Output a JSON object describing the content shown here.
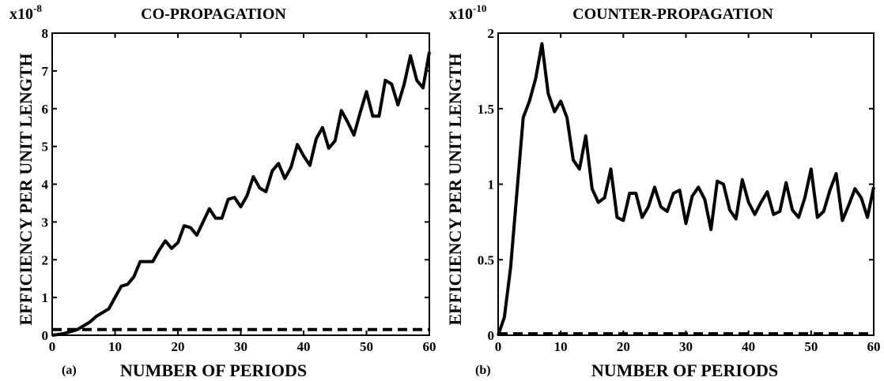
{
  "chart_data": [
    {
      "panel_label": "(a)",
      "type": "line",
      "title": "CO-PROPAGATION",
      "xlabel": "NUMBER OF PERIODS",
      "ylabel": "EFFICIENCY PER UNIT LENGTH",
      "y_multiplier": "x10",
      "y_multiplier_exp": "-8",
      "xlim": [
        0,
        60
      ],
      "ylim": [
        0,
        8
      ],
      "x_ticks": [
        0,
        10,
        20,
        30,
        40,
        50,
        60
      ],
      "y_ticks": [
        0,
        1,
        2,
        3,
        4,
        5,
        6,
        7,
        8
      ],
      "grid": false,
      "series": [
        {
          "style": "solid",
          "x": [
            0,
            1,
            2,
            3,
            4,
            5,
            6,
            7,
            8,
            9,
            10,
            11,
            12,
            13,
            14,
            15,
            16,
            17,
            18,
            19,
            20,
            21,
            22,
            23,
            24,
            25,
            26,
            27,
            28,
            29,
            30,
            31,
            32,
            33,
            34,
            35,
            36,
            37,
            38,
            39,
            40,
            41,
            42,
            43,
            44,
            45,
            46,
            47,
            48,
            49,
            50,
            51,
            52,
            53,
            54,
            55,
            56,
            57,
            58,
            59,
            60
          ],
          "y": [
            0,
            0.02,
            0.05,
            0.1,
            0.15,
            0.25,
            0.35,
            0.5,
            0.6,
            0.7,
            1.0,
            1.3,
            1.35,
            1.55,
            1.95,
            1.95,
            1.95,
            2.25,
            2.5,
            2.3,
            2.45,
            2.9,
            2.85,
            2.65,
            3.0,
            3.35,
            3.1,
            3.1,
            3.6,
            3.65,
            3.4,
            3.7,
            4.2,
            3.9,
            3.8,
            4.35,
            4.55,
            4.15,
            4.45,
            5.05,
            4.75,
            4.5,
            5.2,
            5.5,
            4.95,
            5.15,
            5.95,
            5.65,
            5.3,
            5.9,
            6.45,
            5.8,
            5.8,
            6.75,
            6.65,
            6.1,
            6.65,
            7.4,
            6.75,
            6.55,
            7.5
          ]
        },
        {
          "style": "dashed",
          "x": [
            0,
            60
          ],
          "y": [
            0.15,
            0.15
          ]
        }
      ]
    },
    {
      "panel_label": "(b)",
      "type": "line",
      "title": "COUNTER-PROPAGATION",
      "xlabel": "NUMBER OF PERIODS",
      "ylabel": "EFFICIENCY PER UNIT LENGTH",
      "y_multiplier": "x10",
      "y_multiplier_exp": "-10",
      "xlim": [
        0,
        60
      ],
      "ylim": [
        0,
        2
      ],
      "x_ticks": [
        0,
        10,
        20,
        30,
        40,
        50,
        60
      ],
      "y_ticks": [
        0,
        0.5,
        1,
        1.5,
        2
      ],
      "grid": false,
      "series": [
        {
          "style": "solid",
          "x": [
            0,
            1,
            2,
            3,
            4,
            5,
            6,
            7,
            8,
            9,
            10,
            11,
            12,
            13,
            14,
            15,
            16,
            17,
            18,
            19,
            20,
            21,
            22,
            23,
            24,
            25,
            26,
            27,
            28,
            29,
            30,
            31,
            32,
            33,
            34,
            35,
            36,
            37,
            38,
            39,
            40,
            41,
            42,
            43,
            44,
            45,
            46,
            47,
            48,
            49,
            50,
            51,
            52,
            53,
            54,
            55,
            56,
            57,
            58,
            59,
            60
          ],
          "y": [
            0,
            0.12,
            0.45,
            0.95,
            1.44,
            1.55,
            1.7,
            1.93,
            1.6,
            1.48,
            1.55,
            1.44,
            1.16,
            1.1,
            1.32,
            0.97,
            0.88,
            0.91,
            1.1,
            0.78,
            0.76,
            0.94,
            0.94,
            0.78,
            0.85,
            0.98,
            0.85,
            0.82,
            0.94,
            0.96,
            0.74,
            0.92,
            0.98,
            0.9,
            0.7,
            1.02,
            1.0,
            0.83,
            0.77,
            1.03,
            0.88,
            0.8,
            0.88,
            0.95,
            0.8,
            0.82,
            1.01,
            0.83,
            0.78,
            0.91,
            1.1,
            0.78,
            0.82,
            0.96,
            1.07,
            0.76,
            0.86,
            0.97,
            0.91,
            0.78,
            0.98
          ]
        },
        {
          "style": "dashed",
          "x": [
            0,
            60
          ],
          "y": [
            0.01,
            0.01
          ]
        }
      ]
    }
  ]
}
